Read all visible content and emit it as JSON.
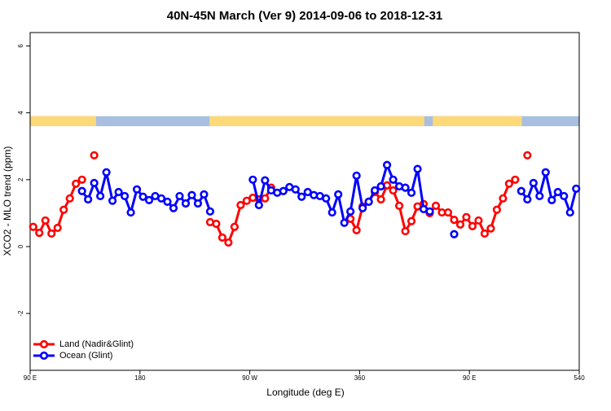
{
  "chart_data": {
    "type": "line",
    "title": "40N-45N March (Ver 9)   2014-09-06 to 2018-12-31",
    "x_label": "Longitude (deg E)",
    "y_label": "XCO2 - MLO trend (ppm)",
    "xlim": [
      90,
      540
    ],
    "ylim": [
      -3.7,
      6.4
    ],
    "xticks": [
      {
        "value": 90,
        "label": "90 E"
      },
      180,
      {
        "value": 270,
        "label": "90 W"
      },
      360,
      {
        "value": 450,
        "label": "90 E"
      },
      540
    ],
    "yticks": [
      -2,
      0,
      2,
      4,
      6
    ],
    "legend": "bottom-left",
    "land_mask": {
      "range": [
        3.6,
        3.9
      ],
      "land_color": "#fdd97a",
      "ocean_color": "#a9bfe0",
      "land": [
        [
          90,
          144
        ],
        [
          237,
          413
        ],
        [
          420,
          493
        ]
      ]
    },
    "series": [
      {
        "name": "Land (Nadir&Glint)",
        "color": "#ff0000",
        "x": [
          92.5,
          97.5,
          102.5,
          107.5,
          112.5,
          117.5,
          122.5,
          127.5,
          132.5,
          137.5,
          142.5,
          147.5,
          237.5,
          242.5,
          247.5,
          252.5,
          257.5,
          262.5,
          267.5,
          272.5,
          277.5,
          282.5,
          287.5,
          292.5,
          352.5,
          357.5,
          362.5,
          367.5,
          372.5,
          377.5,
          382.5,
          387.5,
          392.5,
          397.5,
          402.5,
          407.5,
          412.5,
          417.5,
          422.5,
          427.5,
          432.5,
          437.5,
          442.5,
          447.5,
          452.5,
          457.5,
          462.5,
          467.5,
          472.5,
          477.5,
          482.5,
          487.5,
          492.5,
          497.5,
          502.5
        ],
        "values": [
          0.59,
          0.41,
          0.78,
          0.39,
          0.56,
          1.1,
          1.44,
          1.88,
          2.0,
          null,
          2.73,
          null,
          0.73,
          0.68,
          0.27,
          0.12,
          0.59,
          1.24,
          1.37,
          1.46,
          1.41,
          1.44,
          1.76,
          null,
          0.83,
          0.49,
          1.2,
          1.34,
          1.63,
          1.41,
          1.83,
          1.68,
          1.22,
          0.46,
          0.76,
          1.2,
          1.27,
          1.0,
          1.22,
          1.02,
          1.02,
          0.8,
          0.66,
          0.88,
          0.61,
          0.78,
          0.39,
          0.54,
          1.1,
          1.44,
          1.88,
          2.0,
          null,
          2.73,
          null
        ]
      },
      {
        "name": "Ocean (Glint)",
        "color": "#0000ff",
        "x": [
          132.5,
          137.5,
          142.5,
          147.5,
          152.5,
          157.5,
          162.5,
          167.5,
          172.5,
          177.5,
          182.5,
          187.5,
          192.5,
          197.5,
          202.5,
          207.5,
          212.5,
          217.5,
          222.5,
          227.5,
          232.5,
          237.5,
          242.5,
          272.5,
          277.5,
          282.5,
          287.5,
          292.5,
          297.5,
          302.5,
          307.5,
          312.5,
          317.5,
          322.5,
          327.5,
          332.5,
          337.5,
          342.5,
          347.5,
          352.5,
          357.5,
          362.5,
          367.5,
          372.5,
          377.5,
          382.5,
          387.5,
          392.5,
          397.5,
          402.5,
          407.5,
          412.5,
          417.5,
          422.5,
          437.5,
          442.5,
          492.5,
          497.5,
          502.5,
          507.5,
          512.5,
          517.5,
          522.5,
          527.5,
          532.5,
          537.5
        ],
        "values": [
          1.66,
          1.41,
          1.9,
          1.51,
          2.22,
          1.37,
          1.63,
          1.51,
          1.02,
          1.71,
          1.49,
          1.39,
          1.51,
          1.44,
          1.34,
          1.15,
          1.51,
          1.29,
          1.54,
          1.29,
          1.56,
          1.05,
          null,
          2.0,
          1.24,
          1.98,
          1.68,
          1.61,
          1.66,
          1.78,
          1.71,
          1.49,
          1.63,
          1.54,
          1.51,
          1.44,
          1.02,
          1.56,
          0.71,
          1.05,
          2.12,
          1.15,
          1.34,
          1.68,
          1.8,
          2.44,
          2.0,
          1.8,
          1.76,
          1.61,
          2.32,
          1.12,
          1.05,
          null,
          0.37,
          null,
          1.66,
          1.41,
          1.9,
          1.51,
          2.22,
          1.39,
          1.63,
          1.51,
          1.02,
          1.73
        ]
      }
    ]
  }
}
